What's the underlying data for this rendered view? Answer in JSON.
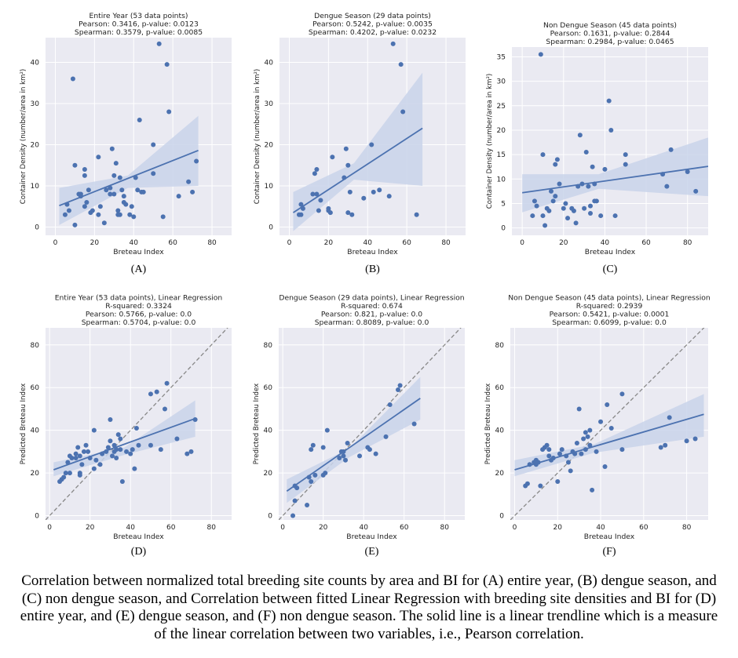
{
  "caption": "Correlation between normalized total breeding site counts by area and BI for (A) entire year, (B) dengue season, and (C) non dengue season, and Correlation between fitted Linear Regression with breeding site densities and BI for (D) entire year, and (E) dengue season, and (F) non dengue season. The solid line is a linear trendline which is a measure of the linear correlation between two variables, i.e., Pearson correlation.",
  "colors": {
    "points": "#4c72b0",
    "band": "#c9d3ea",
    "plot_bg": "#eaeaf2",
    "grid": "#ffffff",
    "identity": "#888888"
  },
  "chart_data": [
    {
      "panel": "(A)",
      "type": "scatter",
      "title": [
        "Entire Year (53 data points)",
        "Pearson: 0.3416, p-value: 0.0123",
        "Spearman: 0.3579, p-value: 0.0085"
      ],
      "xlabel": "Breteau Index",
      "ylabel": "Container Density (number/area in km²)",
      "xlim": [
        -5,
        90
      ],
      "ylim": [
        -2,
        46
      ],
      "xticks": [
        0,
        20,
        40,
        60,
        80
      ],
      "yticks": [
        0,
        10,
        20,
        30,
        40
      ],
      "x": [
        5,
        6,
        7,
        9,
        10,
        12,
        13,
        15,
        15,
        16,
        17,
        18,
        19,
        22,
        22,
        23,
        25,
        26,
        28,
        29,
        30,
        30,
        31,
        32,
        32,
        33,
        33,
        34,
        35,
        36,
        38,
        40,
        41,
        42,
        43,
        44,
        50,
        50,
        53,
        55,
        57,
        58,
        63,
        68,
        70,
        72,
        10,
        13,
        15,
        35,
        39,
        45,
        28
      ],
      "y": [
        3,
        5.5,
        4,
        36,
        15,
        8,
        7.5,
        14,
        12.5,
        6,
        9,
        3.5,
        4,
        3,
        17,
        5,
        1,
        9,
        8,
        19,
        8,
        12.5,
        15.5,
        4,
        3,
        12,
        3,
        9,
        6,
        5.5,
        3,
        2.5,
        12,
        9,
        26,
        8.5,
        20,
        13,
        44.5,
        2.5,
        39.5,
        28,
        7.5,
        11,
        8.5,
        16,
        0.5,
        8,
        5,
        7.5,
        5,
        8.5,
        9.5
      ],
      "fit": {
        "x": [
          2,
          73
        ],
        "y": [
          5.2,
          18.6
        ]
      },
      "band": {
        "lo": [
          0.5,
          9.5,
          10.0
        ],
        "hi": [
          9.5,
          12.5,
          27.0
        ],
        "x": [
          2,
          37,
          73
        ]
      }
    },
    {
      "panel": "(B)",
      "type": "scatter",
      "title": [
        "Dengue Season (29 data points)",
        "Pearson: 0.5242, p-value: 0.0035",
        "Spearman: 0.4202, p-value: 0.0232"
      ],
      "xlabel": "Breteau Index",
      "ylabel": "Container Density (number/area in km²)",
      "xlim": [
        -5,
        90
      ],
      "ylim": [
        -2,
        46
      ],
      "xticks": [
        0,
        20,
        40,
        60,
        80
      ],
      "yticks": [
        0,
        10,
        20,
        30,
        40
      ],
      "x": [
        5,
        6,
        7,
        12,
        13,
        14,
        15,
        16,
        20,
        21,
        22,
        28,
        29,
        30,
        31,
        32,
        38,
        42,
        43,
        46,
        51,
        53,
        57,
        58,
        65,
        14,
        6,
        20,
        30
      ],
      "y": [
        3,
        5.5,
        4.5,
        8,
        13,
        14,
        4,
        6.5,
        4,
        3.5,
        17,
        12,
        19,
        15,
        8.5,
        3,
        7,
        20,
        8.5,
        9,
        7.5,
        44.5,
        39.5,
        28,
        3,
        8,
        3,
        4.5,
        3.5
      ],
      "fit": {
        "x": [
          2,
          68
        ],
        "y": [
          3.5,
          24
        ]
      },
      "band": {
        "lo": [
          -1,
          11.5,
          10.0
        ],
        "hi": [
          8.5,
          15.5,
          37.5
        ],
        "x": [
          2,
          33,
          68
        ]
      }
    },
    {
      "panel": "(C)",
      "type": "scatter",
      "title": [
        "Non Dengue Season (45 data points)",
        "Pearson: 0.1631, p-value: 0.2844",
        "Spearman: 0.2984, p-value: 0.0465"
      ],
      "xlabel": "Breteau Index",
      "ylabel": "Container Density (number/area in km²)",
      "xlim": [
        -5,
        90
      ],
      "ylim": [
        -1.5,
        37
      ],
      "xticks": [
        0,
        20,
        40,
        60,
        80
      ],
      "yticks": [
        0,
        5,
        10,
        15,
        20,
        25,
        30,
        35
      ],
      "x": [
        5,
        6,
        7,
        9,
        10,
        11,
        13,
        14,
        15,
        16,
        17,
        18,
        20,
        21,
        22,
        24,
        26,
        27,
        28,
        29,
        30,
        31,
        32,
        33,
        33,
        34,
        35,
        36,
        38,
        40,
        42,
        43,
        50,
        50,
        68,
        70,
        72,
        84,
        10,
        12,
        16,
        25,
        35,
        45,
        80
      ],
      "y": [
        2.5,
        5.5,
        4.5,
        35.5,
        15,
        0.5,
        3.5,
        7.5,
        5.5,
        13,
        14,
        9,
        4,
        5,
        2,
        4,
        1,
        8.5,
        19,
        9,
        4,
        15.5,
        8.5,
        4.5,
        3,
        12.5,
        5.5,
        5.5,
        2.5,
        12,
        26,
        20,
        15,
        13,
        11,
        8.5,
        16,
        7.5,
        2.5,
        4,
        6.5,
        3.5,
        9,
        2.5,
        11.5
      ],
      "fit": {
        "x": [
          0,
          90
        ],
        "y": [
          7.2,
          12.6
        ]
      },
      "band": {
        "lo": [
          3.2,
          8.0,
          6.5
        ],
        "hi": [
          11.0,
          11.0,
          18.5
        ],
        "x": [
          0,
          37,
          90
        ]
      }
    },
    {
      "panel": "(D)",
      "type": "scatter",
      "title": [
        "Entire Year (53 data points), Linear Regression",
        "R-squared: 0.3324",
        "Pearson: 0.5766, p-value: 0.0",
        "Spearman: 0.5704, p-value: 0.0"
      ],
      "xlabel": "Breteau Index",
      "ylabel": "Predicted Breteau Index",
      "xlim": [
        -2,
        90
      ],
      "ylim": [
        -2,
        88
      ],
      "xticks": [
        0,
        20,
        40,
        60,
        80
      ],
      "yticks": [
        0,
        20,
        40,
        60,
        80
      ],
      "identity": [
        [
          -2,
          -2
        ],
        [
          90,
          90
        ]
      ],
      "x": [
        5,
        6,
        7,
        8,
        9,
        10,
        11,
        13,
        14,
        15,
        15,
        16,
        17,
        18,
        19,
        20,
        22,
        22,
        23,
        25,
        26,
        28,
        29,
        30,
        30,
        31,
        32,
        32,
        33,
        33,
        34,
        35,
        36,
        38,
        40,
        41,
        42,
        43,
        44,
        50,
        50,
        53,
        55,
        57,
        58,
        63,
        68,
        70,
        72,
        10,
        13,
        15,
        35
      ],
      "y": [
        16,
        17,
        18,
        20,
        25,
        28,
        27,
        29,
        32,
        28,
        20,
        24,
        30,
        33,
        30,
        27,
        22,
        40,
        26,
        24,
        29,
        30,
        32,
        35,
        45,
        28,
        30,
        33,
        27,
        31,
        38,
        36,
        16,
        30,
        29,
        31,
        22,
        41,
        33,
        57,
        33,
        58,
        31,
        50,
        62,
        36,
        29,
        30,
        45,
        20,
        27,
        19,
        31
      ],
      "fit": {
        "x": [
          2,
          72
        ],
        "y": [
          21.5,
          45.5
        ]
      },
      "band": {
        "lo": [
          18.5,
          28.5,
          37.0
        ],
        "hi": [
          25.0,
          32.0,
          54.0
        ],
        "x": [
          2,
          37,
          72
        ]
      }
    },
    {
      "panel": "(E)",
      "type": "scatter",
      "title": [
        "Dengue Season (29 data points), Linear Regression",
        "R-squared: 0.674",
        "Pearson: 0.821, p-value: 0.0",
        "Spearman: 0.8089, p-value: 0.0"
      ],
      "xlabel": "Breteau Index",
      "ylabel": "Predicted Breteau Index",
      "xlim": [
        -2,
        90
      ],
      "ylim": [
        -2,
        88
      ],
      "xticks": [
        0,
        20,
        40,
        60,
        80
      ],
      "yticks": [
        0,
        20,
        40,
        60,
        80
      ],
      "identity": [
        [
          -2,
          -2
        ],
        [
          90,
          90
        ]
      ],
      "x": [
        5,
        6,
        7,
        12,
        13,
        14,
        15,
        16,
        20,
        21,
        22,
        28,
        29,
        30,
        31,
        32,
        38,
        42,
        43,
        46,
        51,
        53,
        57,
        58,
        65,
        14,
        6,
        20,
        30
      ],
      "y": [
        0,
        7,
        13,
        5,
        18,
        31,
        33,
        19,
        32,
        20,
        40,
        27,
        30,
        28,
        26,
        34,
        28,
        32,
        31,
        29,
        37,
        52,
        59,
        61,
        43,
        16,
        14,
        19,
        30
      ],
      "fit": {
        "x": [
          2,
          68
        ],
        "y": [
          11.5,
          55
        ]
      },
      "band": {
        "lo": [
          6.0,
          27.5,
          45.0
        ],
        "hi": [
          17.0,
          31.5,
          65.0
        ],
        "x": [
          2,
          33,
          68
        ]
      }
    },
    {
      "panel": "(F)",
      "type": "scatter",
      "title": [
        "Non Dengue Season (45 data points), Linear Regression",
        "R-squared: 0.2939",
        "Pearson: 0.5421, p-value: 0.0001",
        "Spearman: 0.6099, p-value: 0.0"
      ],
      "xlabel": "Breteau Index",
      "ylabel": "Predicted Breteau Index",
      "xlim": [
        -2,
        90
      ],
      "ylim": [
        -2,
        88
      ],
      "xticks": [
        0,
        20,
        40,
        60,
        80
      ],
      "yticks": [
        0,
        20,
        40,
        60,
        80
      ],
      "identity": [
        [
          -2,
          -2
        ],
        [
          90,
          90
        ]
      ],
      "x": [
        5,
        6,
        7,
        9,
        10,
        11,
        13,
        14,
        15,
        16,
        17,
        18,
        20,
        21,
        22,
        24,
        26,
        27,
        28,
        29,
        30,
        31,
        32,
        33,
        33,
        34,
        35,
        36,
        38,
        40,
        42,
        43,
        50,
        50,
        68,
        70,
        72,
        84,
        10,
        12,
        16,
        25,
        35,
        45,
        80
      ],
      "y": [
        14,
        15,
        24,
        25,
        26,
        25,
        31,
        32,
        33,
        28,
        26,
        27,
        16,
        29,
        31,
        28,
        21,
        30,
        29,
        34,
        50,
        29,
        36,
        31,
        39,
        37,
        33,
        12,
        30,
        44,
        23,
        52,
        57,
        31,
        32,
        33,
        46,
        36,
        24,
        14,
        31,
        25,
        40,
        41,
        35
      ],
      "fit": {
        "x": [
          0,
          88
        ],
        "y": [
          21.5,
          47.5
        ]
      },
      "band": {
        "lo": [
          18.5,
          29.5,
          37.0
        ],
        "hi": [
          26.0,
          33.5,
          57.0
        ],
        "x": [
          0,
          37,
          88
        ]
      }
    }
  ]
}
